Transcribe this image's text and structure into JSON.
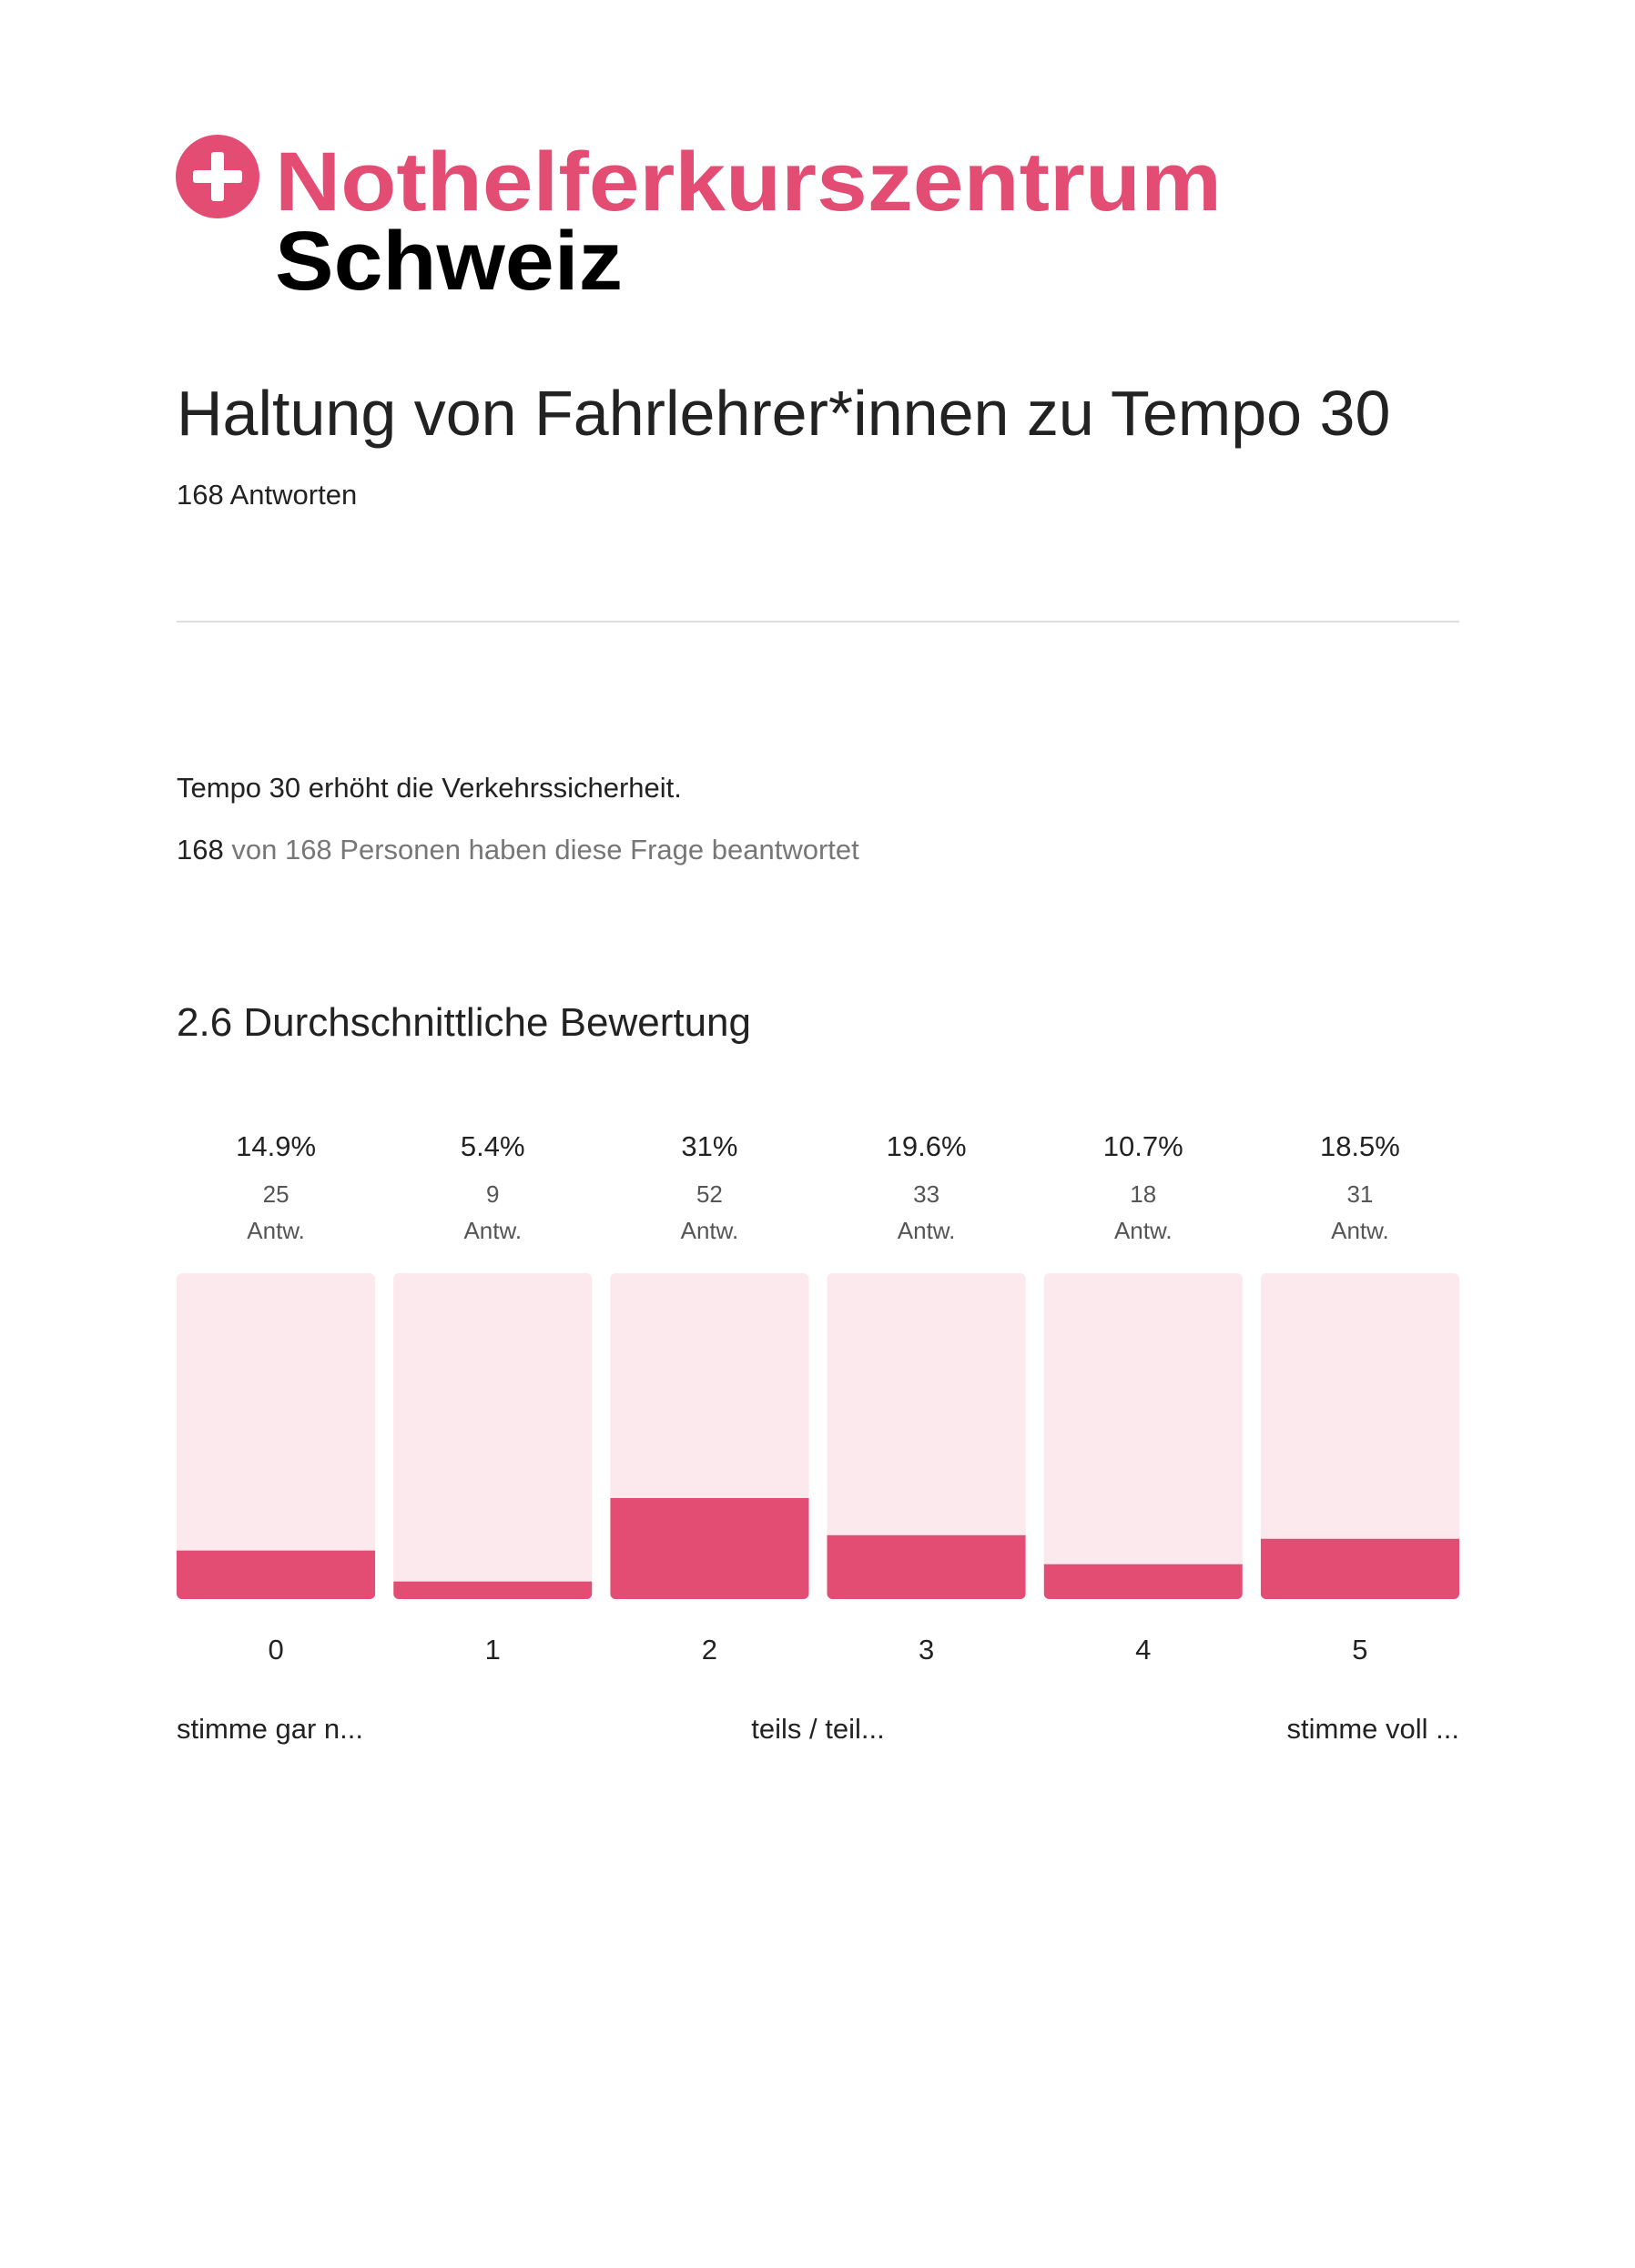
{
  "header": {
    "brand": "Nothelferkurszentrum",
    "brand_sub": "Schweiz"
  },
  "title": "Haltung von Fahrlehrer*innen zu Tempo 30",
  "responses": "168 Antworten",
  "question": {
    "text": "Tempo 30 erhöht die Verkehrssicherheit.",
    "answered": 168,
    "answered_text": "von 168 Personen haben diese Frage beantwortet"
  },
  "chart_data": {
    "type": "bar",
    "title": "2.6 Durchschnittliche Bewertung",
    "categories": [
      "0",
      "1",
      "2",
      "3",
      "4",
      "5"
    ],
    "values": [
      14.9,
      5.4,
      31,
      19.6,
      10.7,
      18.5
    ],
    "value_labels": [
      "14.9%",
      "5.4%",
      "31%",
      "19.6%",
      "10.7%",
      "18.5%"
    ],
    "counts": [
      25,
      9,
      52,
      33,
      18,
      31
    ],
    "count_unit": "Antw.",
    "scale_labels": [
      "stimme gar n...",
      "teils / teil...",
      "stimme voll ..."
    ],
    "color": "#e34d73",
    "track_color": "#fbe9ed",
    "ylim": [
      0,
      100
    ]
  }
}
